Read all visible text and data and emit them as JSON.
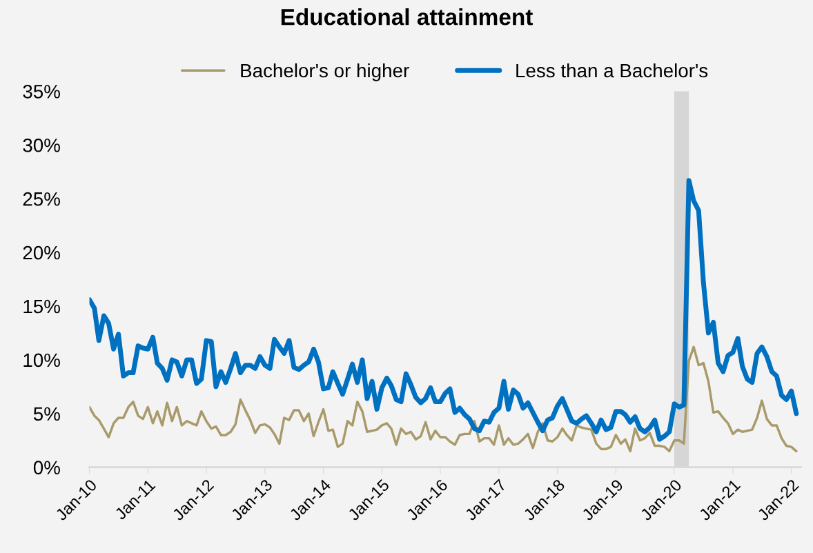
{
  "chart_data": {
    "type": "line",
    "title": "Educational attainment",
    "x": [
      "2010-01",
      "2010-02",
      "2010-03",
      "2010-04",
      "2010-05",
      "2010-06",
      "2010-07",
      "2010-08",
      "2010-09",
      "2010-10",
      "2010-11",
      "2010-12",
      "2011-01",
      "2011-02",
      "2011-03",
      "2011-04",
      "2011-05",
      "2011-06",
      "2011-07",
      "2011-08",
      "2011-09",
      "2011-10",
      "2011-11",
      "2011-12",
      "2012-01",
      "2012-02",
      "2012-03",
      "2012-04",
      "2012-05",
      "2012-06",
      "2012-07",
      "2012-08",
      "2012-09",
      "2012-10",
      "2012-11",
      "2012-12",
      "2013-01",
      "2013-02",
      "2013-03",
      "2013-04",
      "2013-05",
      "2013-06",
      "2013-07",
      "2013-08",
      "2013-09",
      "2013-10",
      "2013-11",
      "2013-12",
      "2014-01",
      "2014-02",
      "2014-03",
      "2014-04",
      "2014-05",
      "2014-06",
      "2014-07",
      "2014-08",
      "2014-09",
      "2014-10",
      "2014-11",
      "2014-12",
      "2015-01",
      "2015-02",
      "2015-03",
      "2015-04",
      "2015-05",
      "2015-06",
      "2015-07",
      "2015-08",
      "2015-09",
      "2015-10",
      "2015-11",
      "2015-12",
      "2016-01",
      "2016-02",
      "2016-03",
      "2016-04",
      "2016-05",
      "2016-06",
      "2016-07",
      "2016-08",
      "2016-09",
      "2016-10",
      "2016-11",
      "2016-12",
      "2017-01",
      "2017-02",
      "2017-03",
      "2017-04",
      "2017-05",
      "2017-06",
      "2017-07",
      "2017-08",
      "2017-09",
      "2017-10",
      "2017-11",
      "2017-12",
      "2018-01",
      "2018-02",
      "2018-03",
      "2018-04",
      "2018-05",
      "2018-06",
      "2018-07",
      "2018-08",
      "2018-09",
      "2018-10",
      "2018-11",
      "2018-12",
      "2019-01",
      "2019-02",
      "2019-03",
      "2019-04",
      "2019-05",
      "2019-06",
      "2019-07",
      "2019-08",
      "2019-09",
      "2019-10",
      "2019-11",
      "2019-12",
      "2020-01",
      "2020-02",
      "2020-03",
      "2020-04",
      "2020-05",
      "2020-06",
      "2020-07",
      "2020-08",
      "2020-09",
      "2020-10",
      "2020-11",
      "2020-12",
      "2021-01",
      "2021-02",
      "2021-03",
      "2021-04",
      "2021-05",
      "2021-06",
      "2021-07",
      "2021-08",
      "2021-09",
      "2021-10",
      "2021-11",
      "2021-12",
      "2022-01",
      "2022-02"
    ],
    "series": [
      {
        "name": "Bachelor's or higher",
        "color": "#a89a6a",
        "values": [
          5.6,
          4.8,
          4.4,
          3.6,
          2.8,
          4.1,
          4.6,
          4.6,
          5.6,
          6.1,
          4.8,
          4.5,
          5.6,
          4.1,
          5.2,
          3.9,
          6.0,
          4.3,
          5.6,
          3.9,
          4.3,
          4.1,
          3.9,
          5.2,
          4.3,
          3.6,
          3.8,
          3.0,
          3.0,
          3.3,
          4.0,
          6.3,
          5.3,
          4.4,
          3.2,
          3.9,
          4.0,
          3.7,
          3.1,
          2.2,
          4.6,
          4.4,
          5.3,
          5.3,
          4.3,
          5.0,
          2.9,
          4.2,
          5.4,
          3.4,
          3.5,
          1.9,
          2.2,
          4.3,
          3.9,
          6.1,
          5.2,
          3.3,
          3.4,
          3.5,
          3.9,
          4.1,
          3.6,
          2.1,
          3.6,
          3.1,
          3.3,
          2.6,
          2.9,
          4.2,
          2.6,
          3.4,
          2.8,
          2.8,
          2.4,
          2.1,
          3.0,
          3.1,
          3.1,
          4.3,
          2.4,
          2.7,
          2.7,
          2.1,
          3.9,
          2.1,
          2.7,
          2.1,
          2.2,
          2.6,
          3.1,
          1.8,
          3.3,
          4.1,
          2.5,
          2.4,
          2.8,
          3.6,
          3.0,
          2.5,
          3.9,
          3.7,
          3.6,
          3.5,
          2.2,
          1.7,
          1.7,
          1.9,
          3.0,
          2.2,
          2.6,
          1.5,
          3.6,
          2.5,
          2.7,
          3.2,
          2.0,
          2.0,
          1.9,
          1.5,
          2.5,
          2.5,
          2.2,
          9.9,
          11.2,
          9.5,
          9.7,
          8.0,
          5.1,
          5.2,
          4.6,
          4.1,
          3.1,
          3.5,
          3.3,
          3.4,
          3.5,
          4.6,
          6.2,
          4.5,
          3.9,
          3.9,
          2.7,
          2.0,
          1.9,
          1.5
        ]
      },
      {
        "name": "Less than a Bachelor's",
        "color": "#0070c0",
        "values": [
          15.6,
          14.8,
          11.8,
          14.1,
          13.4,
          11.0,
          12.4,
          8.5,
          8.8,
          8.8,
          11.3,
          11.1,
          11.0,
          12.1,
          9.7,
          9.2,
          8.1,
          10.0,
          9.8,
          8.5,
          10.0,
          10.0,
          7.8,
          8.2,
          11.8,
          11.7,
          7.5,
          8.9,
          7.9,
          9.2,
          10.6,
          8.8,
          9.5,
          9.5,
          9.2,
          10.3,
          9.5,
          9.2,
          11.9,
          11.2,
          10.6,
          11.8,
          9.3,
          9.1,
          9.5,
          9.8,
          11.0,
          9.8,
          7.3,
          7.4,
          8.9,
          7.8,
          6.8,
          8.2,
          9.6,
          7.9,
          10.0,
          6.4,
          8.0,
          5.4,
          7.4,
          8.3,
          7.6,
          6.3,
          6.1,
          8.7,
          7.7,
          6.5,
          6.0,
          6.4,
          7.4,
          6.1,
          6.1,
          6.9,
          7.3,
          5.1,
          5.5,
          4.9,
          4.5,
          3.6,
          3.4,
          4.3,
          4.2,
          5.1,
          5.5,
          8.0,
          5.4,
          7.2,
          6.8,
          5.5,
          6.0,
          5.1,
          4.2,
          3.4,
          4.4,
          4.6,
          5.7,
          6.4,
          5.4,
          4.3,
          4.1,
          4.5,
          4.8,
          4.1,
          3.3,
          4.4,
          3.5,
          3.7,
          5.2,
          5.2,
          4.9,
          4.2,
          4.7,
          3.6,
          3.3,
          3.7,
          4.4,
          2.6,
          2.9,
          3.3,
          5.9,
          5.6,
          5.8,
          26.7,
          24.8,
          23.9,
          17.2,
          12.5,
          13.5,
          9.7,
          8.9,
          10.4,
          10.7,
          12.0,
          9.4,
          8.2,
          7.9,
          10.6,
          11.2,
          10.3,
          8.9,
          8.5,
          6.7,
          6.3,
          7.1,
          5.0
        ]
      }
    ],
    "bands": [
      {
        "axis": "x",
        "from": "2020-01",
        "to": "2020-04",
        "color": "#d6d6d6"
      }
    ],
    "xlim": [
      "2010-01",
      "2022-03"
    ],
    "xticks": [
      {
        "value": "2010-01",
        "label": "Jan-10"
      },
      {
        "value": "2011-01",
        "label": "Jan-11"
      },
      {
        "value": "2012-01",
        "label": "Jan-12"
      },
      {
        "value": "2013-01",
        "label": "Jan-13"
      },
      {
        "value": "2014-01",
        "label": "Jan-14"
      },
      {
        "value": "2015-01",
        "label": "Jan-15"
      },
      {
        "value": "2016-01",
        "label": "Jan-16"
      },
      {
        "value": "2017-01",
        "label": "Jan-17"
      },
      {
        "value": "2018-01",
        "label": "Jan-18"
      },
      {
        "value": "2019-01",
        "label": "Jan-19"
      },
      {
        "value": "2020-01",
        "label": "Jan-20"
      },
      {
        "value": "2021-01",
        "label": "Jan-21"
      },
      {
        "value": "2022-01",
        "label": "Jan-22"
      }
    ],
    "ylim": [
      0,
      35
    ],
    "yticks": [
      {
        "value": 0,
        "label": "0%"
      },
      {
        "value": 5,
        "label": "5%"
      },
      {
        "value": 10,
        "label": "10%"
      },
      {
        "value": 15,
        "label": "15%"
      },
      {
        "value": 20,
        "label": "20%"
      },
      {
        "value": 25,
        "label": "25%"
      },
      {
        "value": 30,
        "label": "30%"
      },
      {
        "value": 35,
        "label": "35%"
      }
    ],
    "grid": false,
    "legend": "top",
    "marker": "none",
    "line_style": "solid"
  }
}
